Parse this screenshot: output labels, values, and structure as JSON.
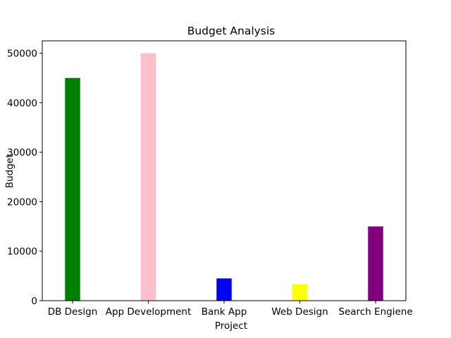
{
  "chart_data": {
    "type": "bar",
    "title": "Budget Analysis",
    "xlabel": "Project",
    "ylabel": "Budget",
    "categories": [
      "DB Design",
      "App Development",
      "Bank App",
      "Web Design",
      "Search Engiene"
    ],
    "values": [
      45000,
      50000,
      4500,
      3300,
      15000
    ],
    "colors": [
      "#008000",
      "#ffc0cb",
      "#0000ff",
      "#ffff00",
      "#800080"
    ],
    "ylim": [
      0,
      52500
    ],
    "yticks": [
      0,
      10000,
      20000,
      30000,
      40000,
      50000
    ],
    "grid": false,
    "legend": "none"
  }
}
